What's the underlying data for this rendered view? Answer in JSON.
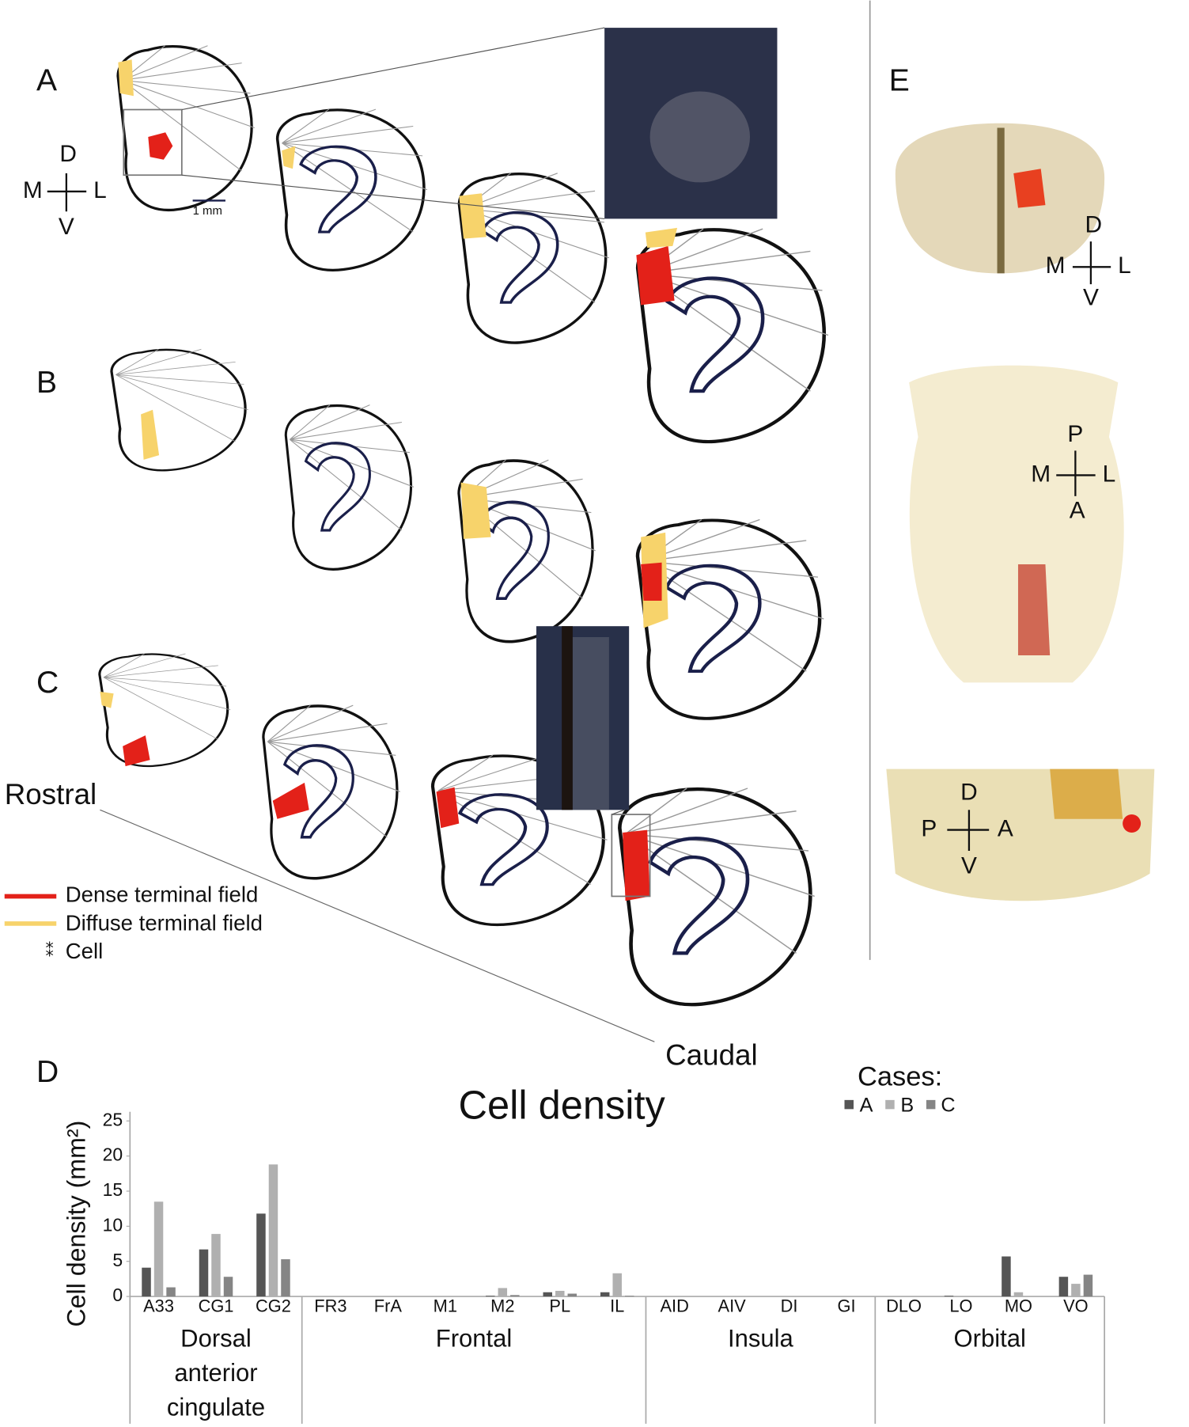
{
  "figure": {
    "panels": [
      "A",
      "B",
      "C",
      "D",
      "E"
    ],
    "rostral": "Rostral",
    "caudal": "Caudal",
    "scale_bar": "1 mm",
    "legend": [
      "Dense terminal field",
      "Diffuse terminal field",
      "Cell"
    ],
    "orientation_a": [
      "D",
      "M",
      "L",
      "V"
    ],
    "orientation_e_coronal": [
      "D",
      "M",
      "L",
      "V"
    ],
    "orientation_e_dorsal": [
      "P",
      "M",
      "L",
      "A"
    ],
    "orientation_e_sagittal": [
      "D",
      "P",
      "A",
      "V"
    ]
  },
  "chart_data": {
    "type": "bar",
    "title": "Cell density",
    "y_label": "Cell density (mm²)",
    "legend_title": "Cases:",
    "categories": [
      "A33",
      "CG1",
      "CG2",
      "FR3",
      "FrA",
      "M1",
      "M2",
      "PL",
      "IL",
      "AID",
      "AIV",
      "DI",
      "GI",
      "DLO",
      "LO",
      "MO",
      "VO"
    ],
    "groups": [
      "Dorsal anterior cingulate",
      "Frontal",
      "Insula",
      "Orbital"
    ],
    "series": [
      {
        "name": "A",
        "color": "#555555",
        "values": [
          4.1,
          6.7,
          11.8,
          0,
          0,
          0,
          0.1,
          0.6,
          0.6,
          0,
          0,
          0,
          0,
          0,
          0.1,
          5.7,
          2.8
        ]
      },
      {
        "name": "B",
        "color": "#b0b0b0",
        "values": [
          13.5,
          8.9,
          18.8,
          0,
          0,
          0,
          1.2,
          0.8,
          3.3,
          0,
          0,
          0,
          0,
          0,
          0,
          0.6,
          1.8
        ]
      },
      {
        "name": "C",
        "color": "#858585",
        "values": [
          1.3,
          2.8,
          5.3,
          0,
          0,
          0,
          0.2,
          0.4,
          0.1,
          0,
          0,
          0,
          0,
          0,
          0,
          0,
          3.1
        ]
      }
    ],
    "ylim": [
      0,
      25
    ],
    "yticks": [
      0,
      5,
      10,
      15,
      20,
      25
    ]
  }
}
